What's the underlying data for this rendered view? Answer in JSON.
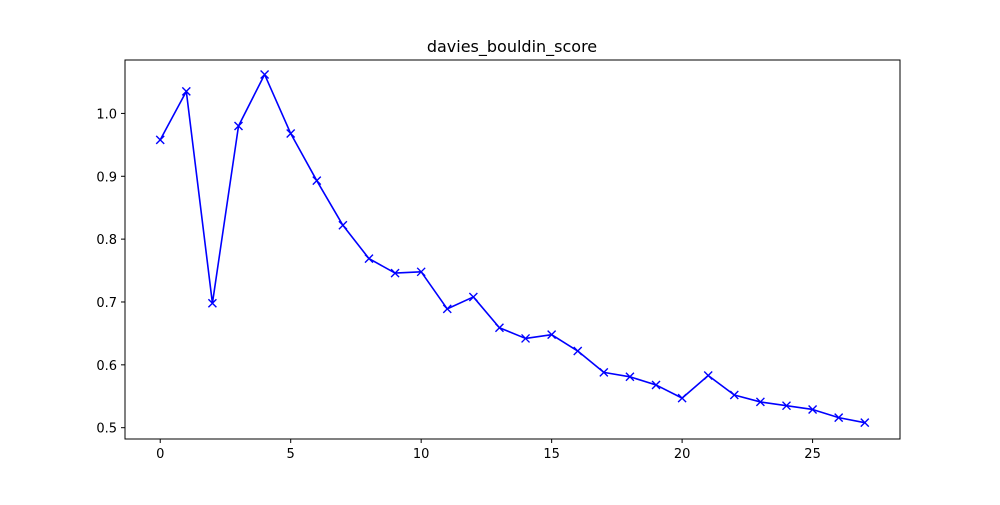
{
  "chart_data": {
    "type": "line",
    "title": "davies_bouldin_score",
    "xlabel": "",
    "ylabel": "",
    "xlim": [
      -1.35,
      28.35
    ],
    "ylim": [
      0.482,
      1.085
    ],
    "xticks": [
      0,
      5,
      10,
      15,
      20,
      25
    ],
    "yticks": [
      0.5,
      0.6,
      0.7,
      0.8,
      0.9,
      1.0
    ],
    "ytick_labels": [
      "0.5",
      "0.6",
      "0.7",
      "0.8",
      "0.9",
      "1.0"
    ],
    "grid": false,
    "series": [
      {
        "color": "#0000ff",
        "marker": "x",
        "x": [
          0,
          1,
          2,
          3,
          4,
          5,
          6,
          7,
          8,
          9,
          10,
          11,
          12,
          13,
          14,
          15,
          16,
          17,
          18,
          19,
          20,
          21,
          22,
          23,
          24,
          25,
          26,
          27
        ],
        "y": [
          0.958,
          1.035,
          0.698,
          0.98,
          1.062,
          0.968,
          0.893,
          0.822,
          0.769,
          0.746,
          0.748,
          0.689,
          0.708,
          0.659,
          0.642,
          0.648,
          0.622,
          0.588,
          0.581,
          0.568,
          0.547,
          0.583,
          0.552,
          0.541,
          0.535,
          0.529,
          0.516,
          0.508
        ]
      }
    ]
  }
}
